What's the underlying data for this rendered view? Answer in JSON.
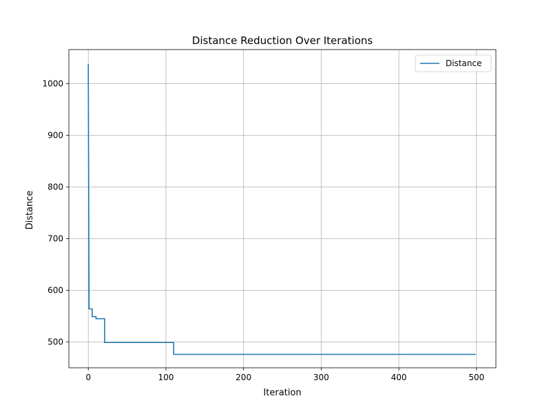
{
  "chart_data": {
    "type": "line",
    "title": "Distance Reduction Over Iterations",
    "xlabel": "Iteration",
    "ylabel": "Distance",
    "xlim": [
      -25,
      525
    ],
    "ylim": [
      450,
      1066
    ],
    "x_ticks": [
      0,
      100,
      200,
      300,
      400,
      500
    ],
    "y_ticks": [
      500,
      600,
      700,
      800,
      900,
      1000
    ],
    "grid": true,
    "legend_position": "top-right",
    "series": [
      {
        "name": "Distance",
        "color": "#1f77b4",
        "points": [
          [
            0,
            1038
          ],
          [
            1,
            564
          ],
          [
            5,
            564
          ],
          [
            5,
            549
          ],
          [
            10,
            549
          ],
          [
            10,
            545
          ],
          [
            21,
            545
          ],
          [
            21,
            499
          ],
          [
            110,
            499
          ],
          [
            110,
            476
          ],
          [
            499,
            476
          ]
        ]
      }
    ]
  }
}
